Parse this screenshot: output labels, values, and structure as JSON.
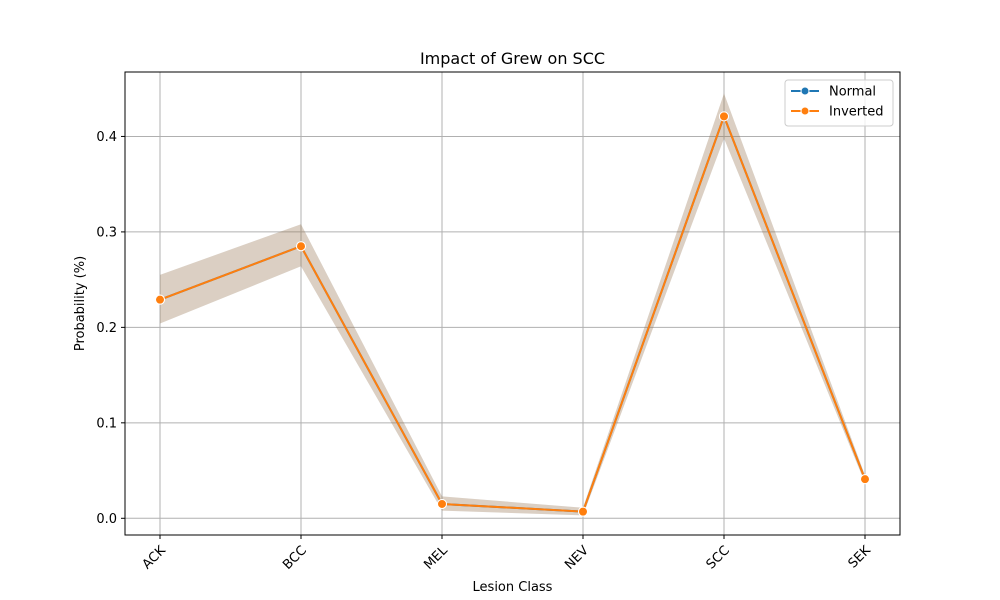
{
  "chart_data": {
    "type": "line",
    "title": "Impact of Grew on SCC",
    "xlabel": "Lesion Class",
    "ylabel": "Probability (%)",
    "categories": [
      "ACK",
      "BCC",
      "MEL",
      "NEV",
      "SCC",
      "SEK"
    ],
    "ylim": [
      -0.0175,
      0.4675
    ],
    "yticks": [
      0.0,
      0.1,
      0.2,
      0.3,
      0.4
    ],
    "ytick_labels": [
      "0.0",
      "0.1",
      "0.2",
      "0.3",
      "0.4"
    ],
    "grid": true,
    "legend_position": "top-right",
    "x_tick_rotation": 45,
    "series": [
      {
        "name": "Normal",
        "color": "#1f77b4",
        "marker": "circle",
        "values": [
          0.229,
          0.285,
          0.015,
          0.007,
          0.421,
          0.041
        ],
        "ci_lower": [
          0.204,
          0.264,
          0.008,
          0.003,
          0.398,
          0.037
        ],
        "ci_upper": [
          0.255,
          0.308,
          0.023,
          0.011,
          0.445,
          0.045
        ]
      },
      {
        "name": "Inverted",
        "color": "#ff7f0e",
        "marker": "circle",
        "values": [
          0.229,
          0.285,
          0.015,
          0.007,
          0.421,
          0.041
        ],
        "ci_lower": [
          0.204,
          0.264,
          0.008,
          0.003,
          0.398,
          0.037
        ],
        "ci_upper": [
          0.255,
          0.308,
          0.023,
          0.011,
          0.445,
          0.045
        ]
      }
    ]
  }
}
